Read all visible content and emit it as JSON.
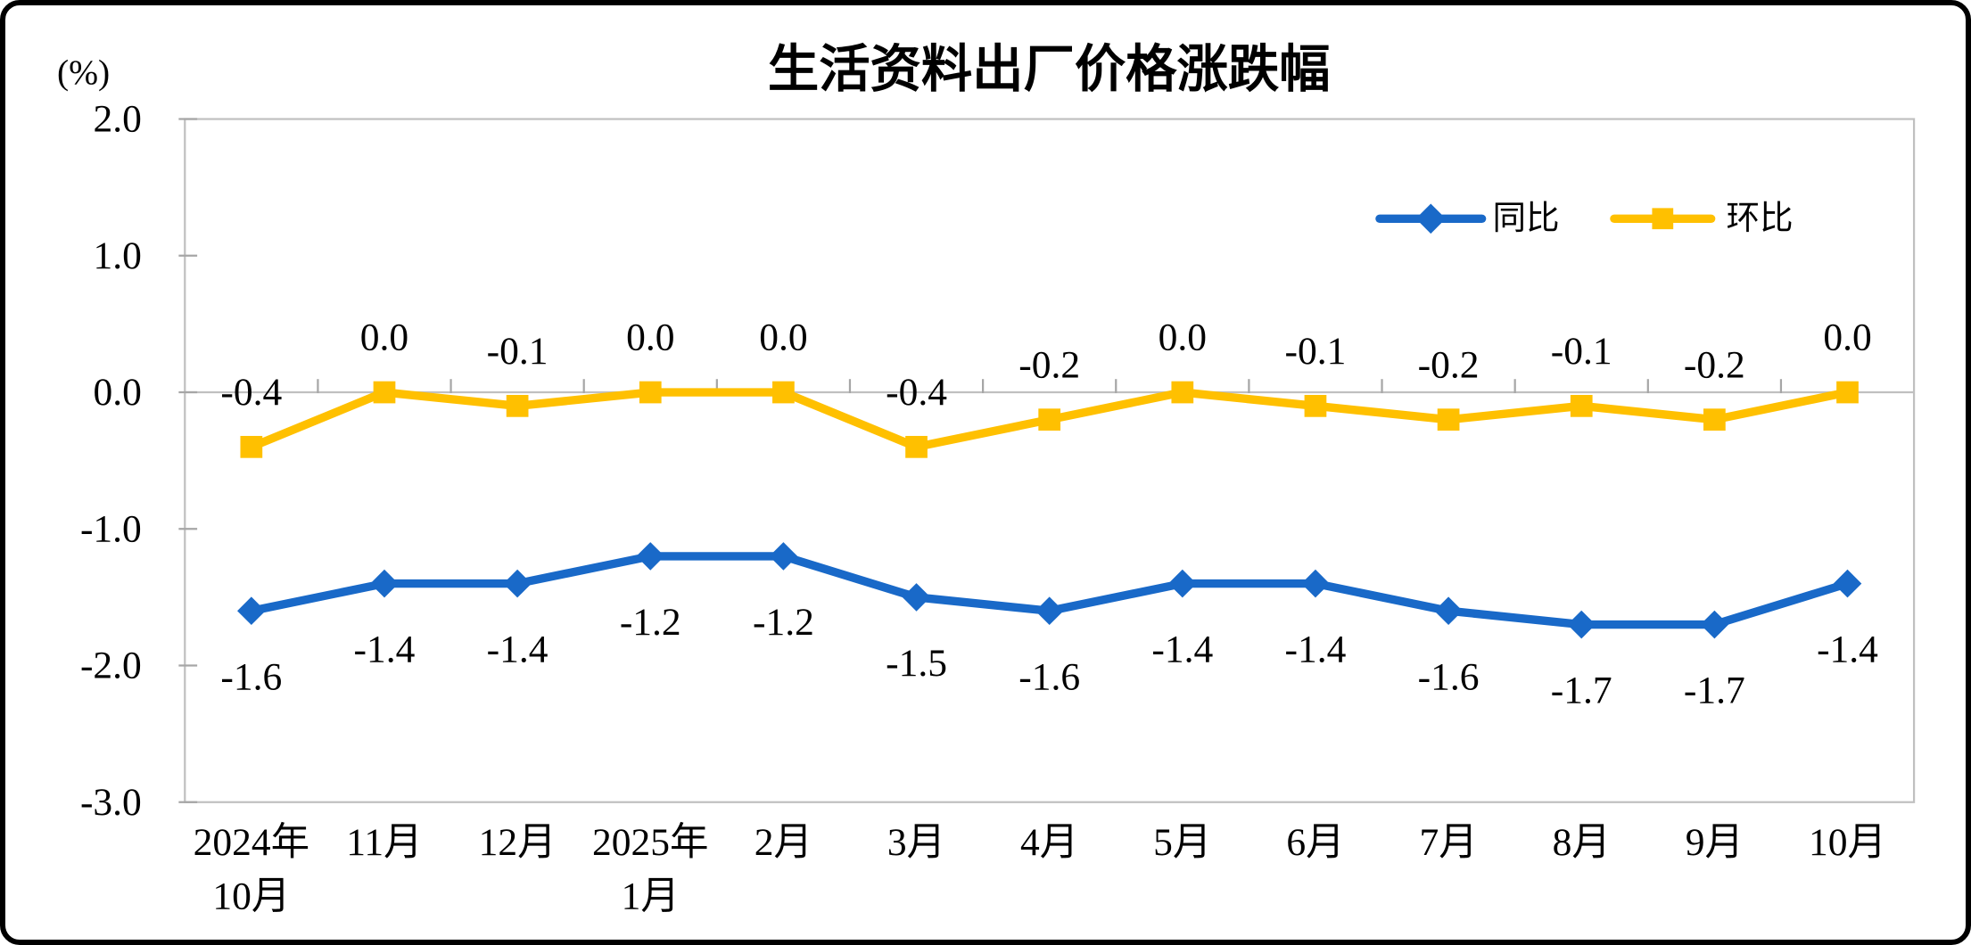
{
  "chart_data": {
    "type": "line",
    "title": "生活资料出厂价格涨跌幅",
    "unit_label": "(%)",
    "categories": [
      [
        "2024年",
        "10月"
      ],
      [
        "11月"
      ],
      [
        "12月"
      ],
      [
        "2025年",
        "1月"
      ],
      [
        "2月"
      ],
      [
        "3月"
      ],
      [
        "4月"
      ],
      [
        "5月"
      ],
      [
        "6月"
      ],
      [
        "7月"
      ],
      [
        "8月"
      ],
      [
        "9月"
      ],
      [
        "10月"
      ]
    ],
    "series": [
      {
        "name": "同比",
        "marker": "diamond",
        "color": "#1969C8",
        "label_position": "below",
        "values": [
          -1.6,
          -1.4,
          -1.4,
          -1.2,
          -1.2,
          -1.5,
          -1.6,
          -1.4,
          -1.4,
          -1.6,
          -1.7,
          -1.7,
          -1.4
        ]
      },
      {
        "name": "环比",
        "marker": "square",
        "color": "#FFC000",
        "label_position": "above",
        "values": [
          -0.4,
          0.0,
          -0.1,
          0.0,
          0.0,
          -0.4,
          -0.2,
          0.0,
          -0.1,
          -0.2,
          -0.1,
          -0.2,
          0.0
        ]
      }
    ],
    "y_axis": {
      "ticks": [
        2.0,
        1.0,
        0.0,
        -1.0,
        -2.0,
        -3.0
      ],
      "max": 2.0,
      "min": -3.0
    },
    "legend_position": "top-right",
    "grid": false,
    "axis_border_color": "#C0C0C0",
    "tick_color": "#A6A6A6",
    "text_color": "#000000",
    "background_color": "#FFFFFF"
  }
}
